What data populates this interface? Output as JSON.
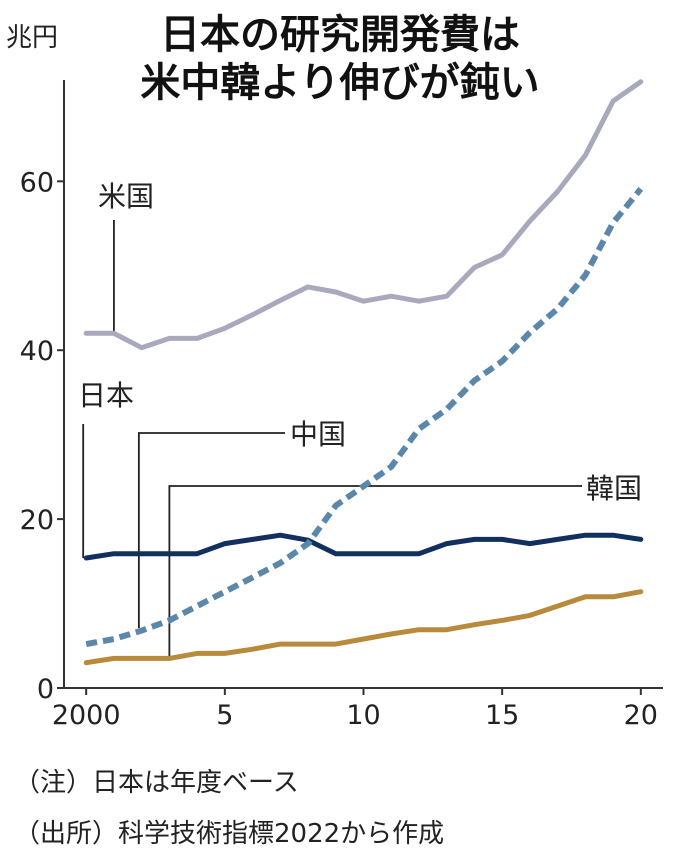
{
  "title_lines": [
    "日本の研究開発費は",
    "米中韓より伸びが鈍い"
  ],
  "unit": "兆円",
  "notes": [
    "（注）日本は年度ベース",
    "（出所）科学技術指標2022から作成"
  ],
  "colors": {
    "us": "#a9a9bd",
    "japan": "#12305f",
    "china": "#5b87ab",
    "korea": "#b88a3c",
    "axis": "#333333",
    "leader": "#222222"
  },
  "chart_data": {
    "type": "line",
    "x": [
      2000,
      2001,
      2002,
      2003,
      2004,
      2005,
      2006,
      2007,
      2008,
      2009,
      2010,
      2011,
      2012,
      2013,
      2014,
      2015,
      2016,
      2017,
      2018,
      2019,
      2020
    ],
    "x_tick_labels": [
      {
        "x": 2000,
        "label": "2000"
      },
      {
        "x": 2005,
        "label": "5"
      },
      {
        "x": 2010,
        "label": "10"
      },
      {
        "x": 2015,
        "label": "15"
      },
      {
        "x": 2020,
        "label": "20"
      }
    ],
    "y_ticks": [
      0,
      20,
      40,
      60
    ],
    "ylim": [
      0,
      72
    ],
    "xlim": [
      1999.2,
      2020.8
    ],
    "series": [
      {
        "name": "米国",
        "key": "us",
        "style": "solid",
        "values": [
          42,
          42,
          40.3,
          41.4,
          41.4,
          42.6,
          44.2,
          45.9,
          47.5,
          46.9,
          45.8,
          46.4,
          45.8,
          46.4,
          49.8,
          51.3,
          55.3,
          58.8,
          63.1,
          69.5,
          71.8
        ]
      },
      {
        "name": "日本",
        "key": "japan",
        "style": "solid",
        "values": [
          15.4,
          15.9,
          15.9,
          15.9,
          15.9,
          17.1,
          17.6,
          18.1,
          17.5,
          15.9,
          15.9,
          15.9,
          15.9,
          17.1,
          17.6,
          17.6,
          17.1,
          17.6,
          18.1,
          18.1,
          17.6
        ]
      },
      {
        "name": "中国",
        "key": "china",
        "style": "dashed",
        "values": [
          5.2,
          5.8,
          6.8,
          8.0,
          9.7,
          11.4,
          13.1,
          14.8,
          17.1,
          21.6,
          23.9,
          26.2,
          30.7,
          33.0,
          36.4,
          38.7,
          42.1,
          44.9,
          48.9,
          55.1,
          59.1
        ]
      },
      {
        "name": "韓国",
        "key": "korea",
        "style": "solid",
        "values": [
          3.0,
          3.5,
          3.5,
          3.5,
          4.1,
          4.1,
          4.6,
          5.2,
          5.2,
          5.2,
          5.8,
          6.4,
          6.9,
          6.9,
          7.5,
          8.0,
          8.6,
          9.7,
          10.8,
          10.8,
          11.4
        ]
      }
    ]
  }
}
